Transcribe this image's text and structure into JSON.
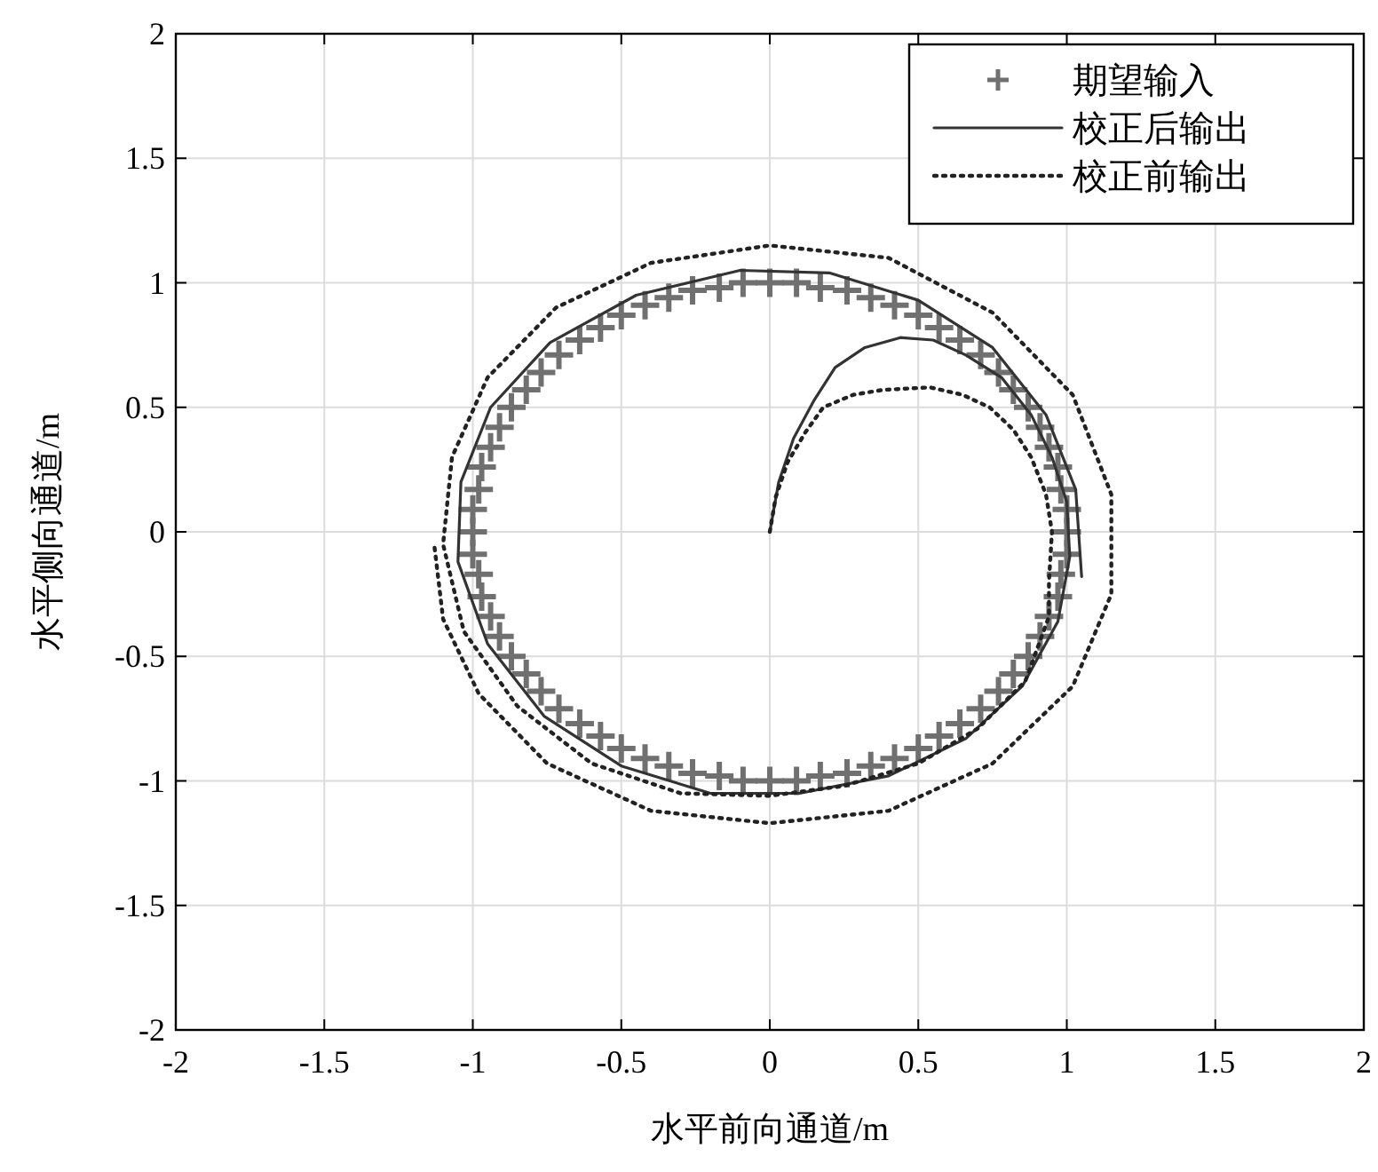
{
  "chart_data": {
    "type": "line",
    "xlabel": "水平前向通道/m",
    "ylabel": "水平侧向通道/m",
    "xlim": [
      -2,
      2
    ],
    "ylim": [
      -2,
      2
    ],
    "xticks": [
      -2,
      -1.5,
      -1,
      -0.5,
      0,
      0.5,
      1,
      1.5,
      2
    ],
    "yticks": [
      -2,
      -1.5,
      -1,
      -0.5,
      0,
      0.5,
      1,
      1.5,
      2
    ],
    "grid": true,
    "legend": "top right",
    "series": [
      {
        "name": "期望输入",
        "type": "scatter",
        "marker": "cross",
        "color": "#707070",
        "x": [
          1,
          1,
          0.98,
          0.97,
          0.94,
          0.91,
          0.87,
          0.82,
          0.77,
          0.71,
          0.64,
          0.57,
          0.5,
          0.42,
          0.34,
          0.26,
          0.17,
          0.09,
          0,
          -0.09,
          -0.17,
          -0.26,
          -0.34,
          -0.42,
          -0.5,
          -0.57,
          -0.64,
          -0.71,
          -0.77,
          -0.82,
          -0.87,
          -0.91,
          -0.94,
          -0.97,
          -0.98,
          -1,
          -1,
          -1,
          -0.98,
          -0.97,
          -0.94,
          -0.91,
          -0.87,
          -0.82,
          -0.77,
          -0.71,
          -0.64,
          -0.57,
          -0.5,
          -0.42,
          -0.34,
          -0.26,
          -0.17,
          -0.09,
          0,
          0.09,
          0.17,
          0.26,
          0.34,
          0.42,
          0.5,
          0.57,
          0.64,
          0.71,
          0.77,
          0.82,
          0.87,
          0.91,
          0.94,
          0.97,
          0.98,
          1
        ],
        "values": [
          0,
          0.09,
          0.17,
          0.26,
          0.34,
          0.42,
          0.5,
          0.57,
          0.64,
          0.71,
          0.77,
          0.82,
          0.87,
          0.91,
          0.94,
          0.97,
          0.98,
          1,
          1,
          1,
          0.98,
          0.97,
          0.94,
          0.91,
          0.87,
          0.82,
          0.77,
          0.71,
          0.64,
          0.57,
          0.5,
          0.42,
          0.34,
          0.26,
          0.17,
          0.09,
          0,
          -0.09,
          -0.17,
          -0.26,
          -0.34,
          -0.42,
          -0.5,
          -0.57,
          -0.64,
          -0.71,
          -0.77,
          -0.82,
          -0.87,
          -0.91,
          -0.94,
          -0.97,
          -0.98,
          -1,
          -1,
          -1,
          -0.98,
          -0.97,
          -0.94,
          -0.91,
          -0.87,
          -0.82,
          -0.77,
          -0.71,
          -0.64,
          -0.57,
          -0.5,
          -0.42,
          -0.34,
          -0.26,
          -0.17,
          -0.09
        ]
      },
      {
        "name": "校正后输出",
        "line_style": "solid",
        "color": "#333333",
        "x": [
          0,
          0.03,
          0.08,
          0.15,
          0.22,
          0.32,
          0.44,
          0.55,
          0.66,
          0.78,
          0.88,
          0.95,
          1.0,
          1.01,
          0.97,
          0.85,
          0.66,
          0.4,
          0.1,
          -0.2,
          -0.5,
          -0.76,
          -0.95,
          -1.05,
          -1.04,
          -0.94,
          -0.74,
          -0.45,
          -0.1,
          0.2,
          0.5,
          0.75,
          0.93,
          1.03,
          1.05
        ],
        "values": [
          0,
          0.2,
          0.375,
          0.53,
          0.66,
          0.74,
          0.78,
          0.77,
          0.71,
          0.62,
          0.47,
          0.3,
          0.12,
          -0.1,
          -0.36,
          -0.62,
          -0.83,
          -0.98,
          -1.05,
          -1.05,
          -0.94,
          -0.74,
          -0.45,
          -0.12,
          0.2,
          0.5,
          0.76,
          0.95,
          1.05,
          1.04,
          0.93,
          0.74,
          0.47,
          0.17,
          -0.18
        ]
      },
      {
        "name": "校正前输出",
        "line_style": "dotted",
        "color": "#222222",
        "x": [
          0,
          0.02,
          0.06,
          0.12,
          0.18,
          0.28,
          0.38,
          0.54,
          0.65,
          0.74,
          0.82,
          0.88,
          0.93,
          0.95,
          0.94,
          0.94,
          0.86,
          0.7,
          0.5,
          0.25,
          0,
          -0.3,
          -0.6,
          -0.85,
          -1.03,
          -1.1,
          -1.07,
          -0.95,
          -0.72,
          -0.4,
          0,
          0.4,
          0.75,
          1.02,
          1.15,
          1.15,
          1.02,
          0.75,
          0.4,
          0,
          -0.4,
          -0.75,
          -0.98,
          -1.1,
          -1.13
        ],
        "values": [
          0,
          0.14,
          0.28,
          0.4,
          0.5,
          0.55,
          0.57,
          0.58,
          0.55,
          0.5,
          0.41,
          0.3,
          0.15,
          0,
          -0.2,
          -0.34,
          -0.6,
          -0.79,
          -0.93,
          -1.02,
          -1.06,
          -1.05,
          -0.93,
          -0.7,
          -0.4,
          -0.05,
          0.3,
          0.62,
          0.9,
          1.08,
          1.15,
          1.1,
          0.88,
          0.55,
          0.15,
          -0.25,
          -0.62,
          -0.93,
          -1.12,
          -1.17,
          -1.12,
          -0.93,
          -0.65,
          -0.35,
          -0.05
        ]
      }
    ]
  }
}
